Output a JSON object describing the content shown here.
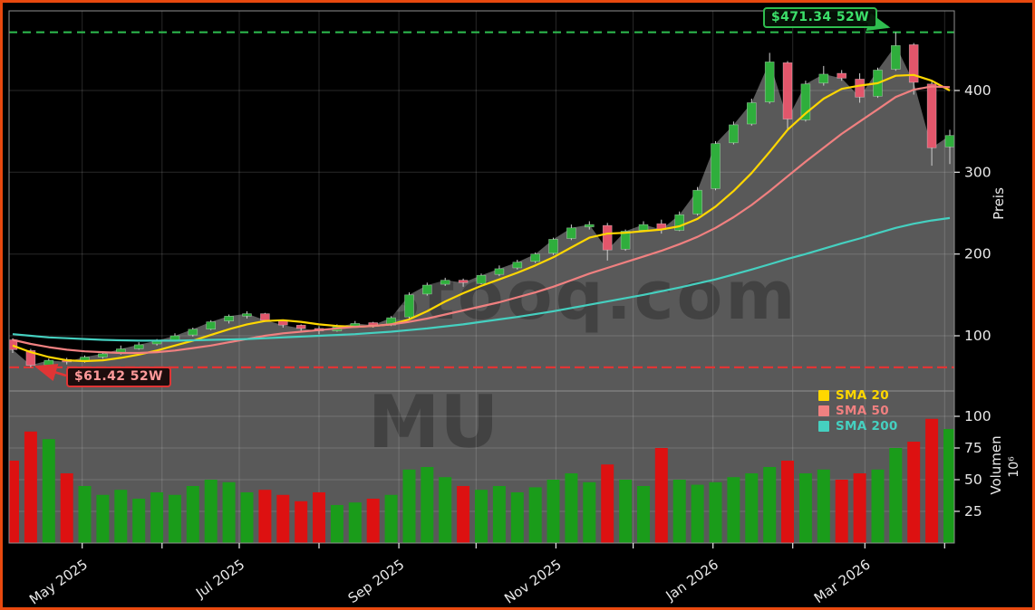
{
  "watermark": {
    "site": "stooq.com",
    "ticker": "MU"
  },
  "annotations": {
    "high": {
      "label": "$471.34 52W",
      "value": 471.34
    },
    "low": {
      "label": "$61.42 52W",
      "value": 61.42
    }
  },
  "legend": {
    "items": [
      {
        "label": "SMA 20",
        "color": "#ffd700"
      },
      {
        "label": "SMA 50",
        "color": "#f08080"
      },
      {
        "label": "SMA 200",
        "color": "#45d0c0"
      }
    ]
  },
  "axes": {
    "price": {
      "title": "Preis",
      "ticks": [
        100,
        200,
        300,
        400
      ]
    },
    "volume": {
      "title": "Volumen",
      "unit": "10⁶",
      "ticks": [
        25,
        50,
        75,
        100
      ]
    }
  },
  "colors": {
    "background": "#000000",
    "frame_border": "#e8490f",
    "panel_fill": "#595959",
    "grid": "rgba(255,255,255,0.16)",
    "spine": "#8f8f8f",
    "tick_text": "#e9e9e9",
    "candle_up": "#2fae3c",
    "candle_down": "#e2566b",
    "wick": "#d0d0d0",
    "volume_up": "#1a9c1a",
    "volume_down": "#dd1111",
    "high_marker": "#2fbe4f",
    "low_marker": "#e03535",
    "watermark": "rgba(0,0,0,0.26)"
  },
  "chart_data": {
    "type": "candlestick-with-volume",
    "title": "",
    "price_axis": {
      "label": "Preis",
      "ticks": [
        100,
        200,
        300,
        400
      ],
      "side": "right"
    },
    "volume_axis": {
      "label": "Volumen",
      "unit": "10⁶",
      "ticks": [
        25,
        50,
        75,
        100
      ],
      "side": "right"
    },
    "x_axis": {
      "span_days": 364,
      "tick_labels": [
        "May 2025",
        "Jul 2025",
        "Sep 2025",
        "Nov 2025",
        "Jan 2026",
        "Mar 2026"
      ],
      "months": [
        {
          "day": 27,
          "label": "May 2025"
        },
        {
          "day": 58
        },
        {
          "day": 88,
          "label": "Jul 2025"
        },
        {
          "day": 119
        },
        {
          "day": 150,
          "label": "Sep 2025"
        },
        {
          "day": 180
        },
        {
          "day": 211,
          "label": "Nov 2025"
        },
        {
          "day": 241
        },
        {
          "day": 272,
          "label": "Jan 2026"
        },
        {
          "day": 303
        },
        {
          "day": 331,
          "label": "Mar 2026"
        },
        {
          "day": 362
        }
      ]
    },
    "high_52w": 471.34,
    "low_52w": 61.42,
    "candles": {
      "interval": "weekly (approximation of daily chart)",
      "dates": [
        "2025-04-04",
        "2025-04-11",
        "2025-04-18",
        "2025-04-25",
        "2025-05-02",
        "2025-05-09",
        "2025-05-16",
        "2025-05-23",
        "2025-05-30",
        "2025-06-06",
        "2025-06-13",
        "2025-06-20",
        "2025-06-27",
        "2025-07-04",
        "2025-07-11",
        "2025-07-18",
        "2025-07-25",
        "2025-08-01",
        "2025-08-08",
        "2025-08-15",
        "2025-08-22",
        "2025-08-29",
        "2025-09-05",
        "2025-09-12",
        "2025-09-19",
        "2025-09-26",
        "2025-10-03",
        "2025-10-10",
        "2025-10-17",
        "2025-10-24",
        "2025-10-31",
        "2025-11-07",
        "2025-11-14",
        "2025-11-21",
        "2025-11-28",
        "2025-12-05",
        "2025-12-12",
        "2025-12-19",
        "2025-12-26",
        "2026-01-02",
        "2026-01-09",
        "2026-01-16",
        "2026-01-23",
        "2026-01-30",
        "2026-02-06",
        "2026-02-13",
        "2026-02-20",
        "2026-02-27",
        "2026-03-06",
        "2026-03-13",
        "2026-03-20",
        "2026-03-27",
        "2026-04-03"
      ],
      "open": [
        95,
        82,
        64,
        71,
        69,
        74,
        79,
        84,
        90,
        94,
        101,
        108,
        118,
        124,
        127,
        118,
        113,
        109,
        106,
        112,
        116,
        113,
        123,
        151,
        163,
        168,
        164,
        175,
        183,
        191,
        201,
        219,
        233,
        235,
        206,
        229,
        237,
        229,
        249,
        280,
        336,
        359,
        386,
        434,
        364,
        409,
        421,
        414,
        393,
        426,
        456,
        408,
        331
      ],
      "high": [
        97,
        84,
        72,
        73,
        76,
        80,
        88,
        92,
        96,
        103,
        110,
        119,
        126,
        130,
        128,
        119,
        114,
        112,
        114,
        118,
        117,
        124,
        153,
        165,
        171,
        170,
        176,
        186,
        193,
        202,
        220,
        236,
        240,
        238,
        230,
        240,
        242,
        252,
        282,
        338,
        362,
        390,
        446,
        436,
        412,
        430,
        425,
        421,
        428,
        471.34,
        458,
        412,
        352
      ],
      "low": [
        79,
        61.42,
        62,
        65,
        67,
        72,
        77,
        83,
        88,
        93,
        99,
        107,
        115,
        121,
        117,
        110,
        106,
        102,
        105,
        110,
        110,
        112,
        121,
        149,
        161,
        160,
        163,
        173,
        181,
        189,
        199,
        217,
        230,
        192,
        204,
        227,
        225,
        228,
        247,
        278,
        334,
        357,
        384,
        352,
        362,
        406,
        412,
        385,
        391,
        424,
        395,
        308,
        310
      ],
      "close": [
        83,
        64,
        70,
        68,
        74,
        78,
        84,
        89,
        94,
        100,
        108,
        117,
        124,
        127,
        119,
        113,
        109,
        106,
        111,
        115,
        113,
        122,
        150,
        162,
        168,
        165,
        174,
        182,
        190,
        200,
        218,
        232,
        236,
        205,
        228,
        236,
        230,
        248,
        278,
        335,
        358,
        385,
        435,
        365,
        408,
        420,
        415,
        392,
        425,
        455,
        410,
        330,
        345
      ],
      "volume_millions": [
        65,
        88,
        82,
        55,
        45,
        38,
        42,
        35,
        40,
        38,
        45,
        50,
        48,
        40,
        42,
        38,
        33,
        40,
        30,
        32,
        35,
        38,
        58,
        60,
        52,
        45,
        42,
        45,
        40,
        44,
        50,
        55,
        48,
        62,
        50,
        45,
        75,
        50,
        46,
        48,
        52,
        55,
        60,
        65,
        55,
        58,
        50,
        55,
        58,
        75,
        80,
        98,
        90
      ]
    },
    "sma_series": [
      {
        "name": "SMA 20",
        "window": 20,
        "color": "#ffd700",
        "values": [
          88,
          80,
          74,
          70,
          69,
          70,
          73,
          77,
          82,
          88,
          94,
          101,
          108,
          114,
          118,
          119,
          117,
          114,
          112,
          111,
          112,
          114,
          120,
          130,
          142,
          152,
          161,
          169,
          177,
          186,
          196,
          208,
          220,
          225,
          226,
          228,
          230,
          234,
          243,
          258,
          277,
          299,
          325,
          352,
          372,
          390,
          402,
          406,
          409,
          418,
          419,
          412,
          400
        ]
      },
      {
        "name": "SMA 50",
        "window": 50,
        "color": "#f08080",
        "values": [
          95,
          90,
          86,
          83,
          81,
          80,
          79,
          79,
          80,
          82,
          85,
          88,
          92,
          96,
          100,
          103,
          105,
          107,
          109,
          111,
          112,
          114,
          117,
          121,
          126,
          131,
          136,
          141,
          147,
          153,
          160,
          168,
          176,
          183,
          190,
          197,
          204,
          212,
          221,
          232,
          245,
          260,
          277,
          295,
          313,
          330,
          347,
          362,
          377,
          392,
          401,
          405,
          404
        ]
      },
      {
        "name": "SMA 200",
        "window": 200,
        "color": "#45d0c0",
        "values": [
          102,
          100,
          98,
          97,
          96,
          95,
          94.5,
          94,
          94,
          94,
          94.5,
          95,
          95.5,
          96,
          97,
          98,
          99,
          100,
          101,
          102,
          103.5,
          105,
          107,
          109,
          111.5,
          114,
          117,
          120,
          123,
          126.5,
          130,
          134,
          138,
          142,
          146,
          150,
          154.5,
          159,
          164,
          169,
          175,
          181,
          187.5,
          194,
          200,
          206.5,
          213,
          219,
          225.5,
          232,
          237,
          241,
          244
        ]
      }
    ]
  }
}
